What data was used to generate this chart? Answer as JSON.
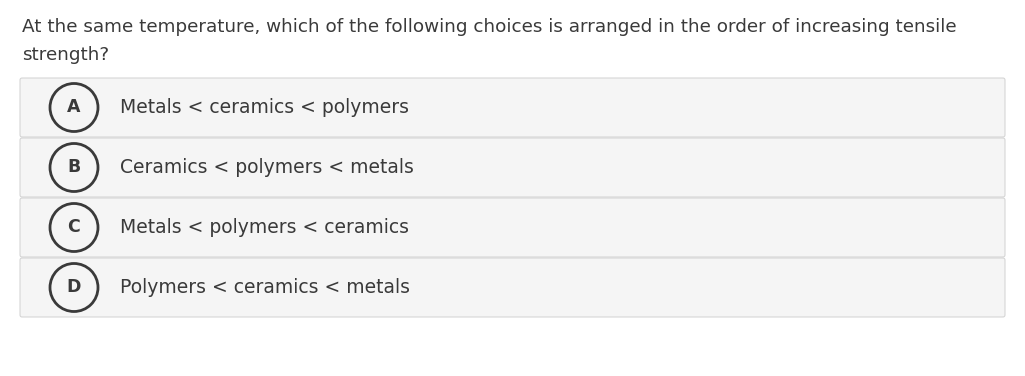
{
  "question_line1": "At the same temperature, which of the following choices is arranged in the order of increasing tensile",
  "question_line2": "strength?",
  "choices": [
    {
      "label": "A",
      "text": "Metals < ceramics < polymers"
    },
    {
      "label": "B",
      "text": "Ceramics < polymers < metals"
    },
    {
      "label": "C",
      "text": "Metals < polymers < ceramics"
    },
    {
      "label": "D",
      "text": "Polymers < ceramics < metals"
    }
  ],
  "bg_color": "#ffffff",
  "option_bg_color": "#f5f5f5",
  "option_border_color": "#d0d0d0",
  "text_color": "#3a3a3a",
  "circle_edge_color": "#3a3a3a",
  "circle_fill_color": "#f5f5f5",
  "question_fontsize": 13.2,
  "choice_fontsize": 13.5,
  "label_fontsize": 12.5,
  "fig_width": 10.25,
  "fig_height": 3.76,
  "dpi": 100
}
